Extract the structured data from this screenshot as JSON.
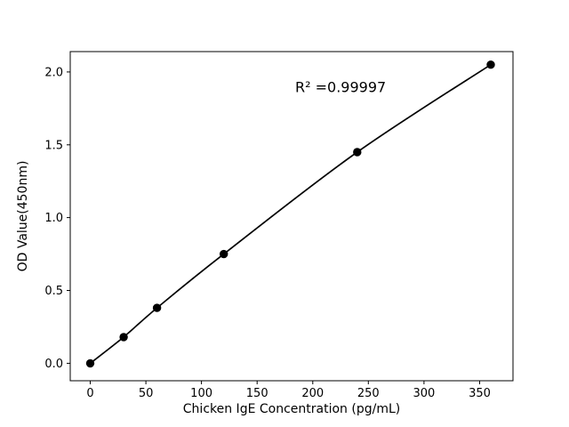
{
  "figure": {
    "background_color": "#ffffff"
  },
  "chart_data": {
    "type": "line",
    "title": "",
    "xlabel": "Chicken IgE Concentration (pg/mL)",
    "ylabel": "OD Value(450nm)",
    "annotation": "R² =0.99997",
    "annotation_pos": [
      225,
      1.9
    ],
    "x": [
      0,
      30,
      60,
      120,
      240,
      360
    ],
    "y": [
      0.0,
      0.18,
      0.38,
      0.75,
      1.45,
      2.05
    ],
    "xticks": [
      0,
      50,
      100,
      150,
      200,
      250,
      300,
      350
    ],
    "xtick_labels": [
      "0",
      "50",
      "100",
      "150",
      "200",
      "250",
      "300",
      "350"
    ],
    "yticks": [
      0.0,
      0.5,
      1.0,
      1.5,
      2.0
    ],
    "ytick_labels": [
      "0.0",
      "0.5",
      "1.0",
      "1.5",
      "2.0"
    ],
    "xlim": [
      -18,
      380
    ],
    "ylim": [
      -0.12,
      2.14
    ],
    "grid": false,
    "legend": null,
    "line_color": "#000000",
    "line_width": 1.7,
    "marker": "circle",
    "marker_color": "#000000",
    "marker_diameter": 9.4,
    "frame_color": "#000000"
  }
}
